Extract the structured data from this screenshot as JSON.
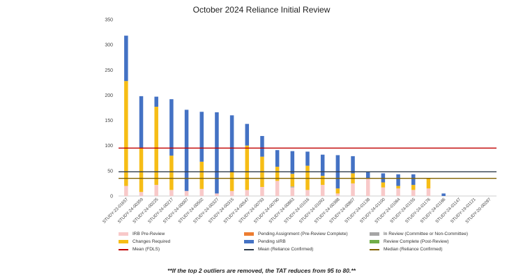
{
  "chart_data": {
    "type": "bar",
    "stacked": true,
    "title": "October 2024 Reliance Initial Review",
    "ylim": [
      0,
      350
    ],
    "yticks": [
      0,
      50,
      100,
      150,
      200,
      250,
      300,
      350
    ],
    "grid": false,
    "legend_position": "bottom",
    "categories": [
      "STUDY-23-01657",
      "STUDY-24-00359",
      "STUDY-24-00225",
      "STUDY-24-00217",
      "STUDY-24-00007",
      "STUDY-24-00502",
      "STUDY-24-00327",
      "STUDY-24-00315",
      "STUDY-24-00547",
      "STUDY-24-00793",
      "STUDY-24-00790",
      "STUDY-24-00863",
      "STUDY-24-01016",
      "STUDY-24-01092",
      "STUDY-24-00388",
      "STUDY-24-00807",
      "STUDY-24-01138",
      "STUDY-24-01100",
      "STUDY-24-01064",
      "STUDY-24-01155",
      "STUDY-24-01176",
      "STUDY-24-01186",
      "STUDY-24-01147",
      "STUDY-19-01121",
      "STUDY-20-00287"
    ],
    "series": [
      {
        "name": "IRB Pre-Review",
        "color": "#f8c9c9",
        "values": [
          20,
          8,
          22,
          12,
          10,
          14,
          5,
          10,
          12,
          18,
          30,
          17,
          12,
          22,
          5,
          25,
          35,
          17,
          15,
          12,
          15,
          0,
          0,
          0,
          0
        ]
      },
      {
        "name": "Pending Assignment (Pre-Review Complete)",
        "color": "#ed7d31",
        "values": [
          0,
          0,
          0,
          0,
          0,
          0,
          0,
          0,
          0,
          0,
          0,
          0,
          0,
          0,
          0,
          0,
          0,
          0,
          0,
          0,
          0,
          0,
          0,
          0,
          0
        ]
      },
      {
        "name": "In Review (Committee or Non-Committee)",
        "color": "#a5a5a5",
        "values": [
          0,
          0,
          0,
          0,
          0,
          0,
          0,
          0,
          0,
          0,
          0,
          2,
          0,
          0,
          0,
          0,
          0,
          0,
          0,
          0,
          0,
          0,
          0,
          0,
          0
        ]
      },
      {
        "name": "Changes Required",
        "color": "#f6bd16",
        "values": [
          208,
          88,
          155,
          68,
          0,
          54,
          0,
          37,
          88,
          60,
          28,
          25,
          48,
          18,
          10,
          20,
          0,
          10,
          5,
          10,
          20,
          0,
          0,
          0,
          0
        ]
      },
      {
        "name": "Pending sIRB",
        "color": "#4472c4",
        "values": [
          90,
          102,
          20,
          112,
          161,
          99,
          161,
          113,
          43,
          41,
          33,
          45,
          28,
          42,
          66,
          34,
          12,
          18,
          23,
          21,
          0,
          5,
          0,
          0,
          0
        ]
      },
      {
        "name": "Review Complete (Post-Review)",
        "color": "#70ad47",
        "values": [
          0,
          0,
          0,
          0,
          0,
          0,
          0,
          0,
          0,
          0,
          0,
          0,
          0,
          0,
          0,
          0,
          0,
          0,
          0,
          0,
          0,
          0,
          0,
          0,
          0
        ]
      }
    ],
    "reference_lines": [
      {
        "name": "Mean (FDLS)",
        "color": "#c00000",
        "value": 95
      },
      {
        "name": "Mean (Reliance Confirmed)",
        "color": "#2f3b4a",
        "value": 48
      },
      {
        "name": "Median (Reliance Confirmed)",
        "color": "#806000",
        "value": 35
      }
    ]
  },
  "legend": [
    [
      {
        "label": "IRB Pre-Review",
        "color": "#f8c9c9",
        "kind": "box"
      },
      {
        "label": "Pending Assignment (Pre-Review Complete)",
        "color": "#ed7d31",
        "kind": "box"
      },
      {
        "label": "In Review (Committee or Non-Committee)",
        "color": "#a5a5a5",
        "kind": "box"
      }
    ],
    [
      {
        "label": "Changes Required",
        "color": "#f6bd16",
        "kind": "box"
      },
      {
        "label": "Pending sIRB",
        "color": "#4472c4",
        "kind": "box"
      },
      {
        "label": "Review Complete (Post-Review)",
        "color": "#70ad47",
        "kind": "box"
      }
    ],
    [
      {
        "label": "Mean (FDLS)",
        "color": "#c00000",
        "kind": "line"
      },
      {
        "label": "Mean (Reliance Confirmed)",
        "color": "#2f3b4a",
        "kind": "line"
      },
      {
        "label": "Median (Reliance Confirmed)",
        "color": "#806000",
        "kind": "line"
      }
    ]
  ],
  "footnote": "**If the top 2 outliers are removed, the TAT reduces from 95 to 80.**"
}
